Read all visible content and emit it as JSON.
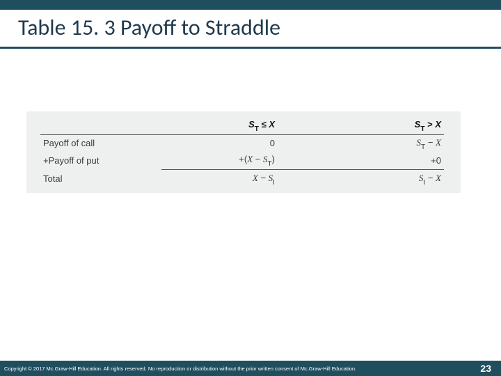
{
  "colors": {
    "brand": "#1f4e5f",
    "title_text": "#1f3a4d",
    "table_bg": "#eef0f0",
    "line": "#555555",
    "body_text": "#3a3a3a"
  },
  "title": "Table 15. 3 Payoff to Straddle",
  "table": {
    "header": {
      "col_a_html": "<b><i>S</i><span class='sub'>T</span> &le; <i>X</i></b>",
      "col_b_html": "<b><i>S</i><span class='sub'>T</span> &gt; <i>X</i></b>"
    },
    "rows": [
      {
        "label": "Payoff of call",
        "a_html": "0",
        "b_html": "<span class='serif-i'>S</span><span class='sub'>T</span> &minus; <span class='serif-i'>X</span>"
      },
      {
        "label": "+Payoff of put",
        "a_html": "+(<span class='serif-i'>X</span> &minus; <span class='serif-i'>S</span><span class='sub'>T</span>)",
        "b_html": "+0"
      }
    ],
    "total": {
      "label": "Total",
      "a_html": "<span class='serif-i'>X</span> &minus; <span class='serif-i'>S</span><span class='sub'>I</span>",
      "b_html": "<span class='serif-i'>S</span><span class='sub'>I</span> &minus; <span class='serif-i'>X</span>"
    }
  },
  "footer": {
    "copyright": "Copyright © 2017 Mc.Graw-Hill Education. All rights reserved. No reproduction or distribution without the prior written consent of Mc.Graw-Hill Education.",
    "page": "23"
  }
}
